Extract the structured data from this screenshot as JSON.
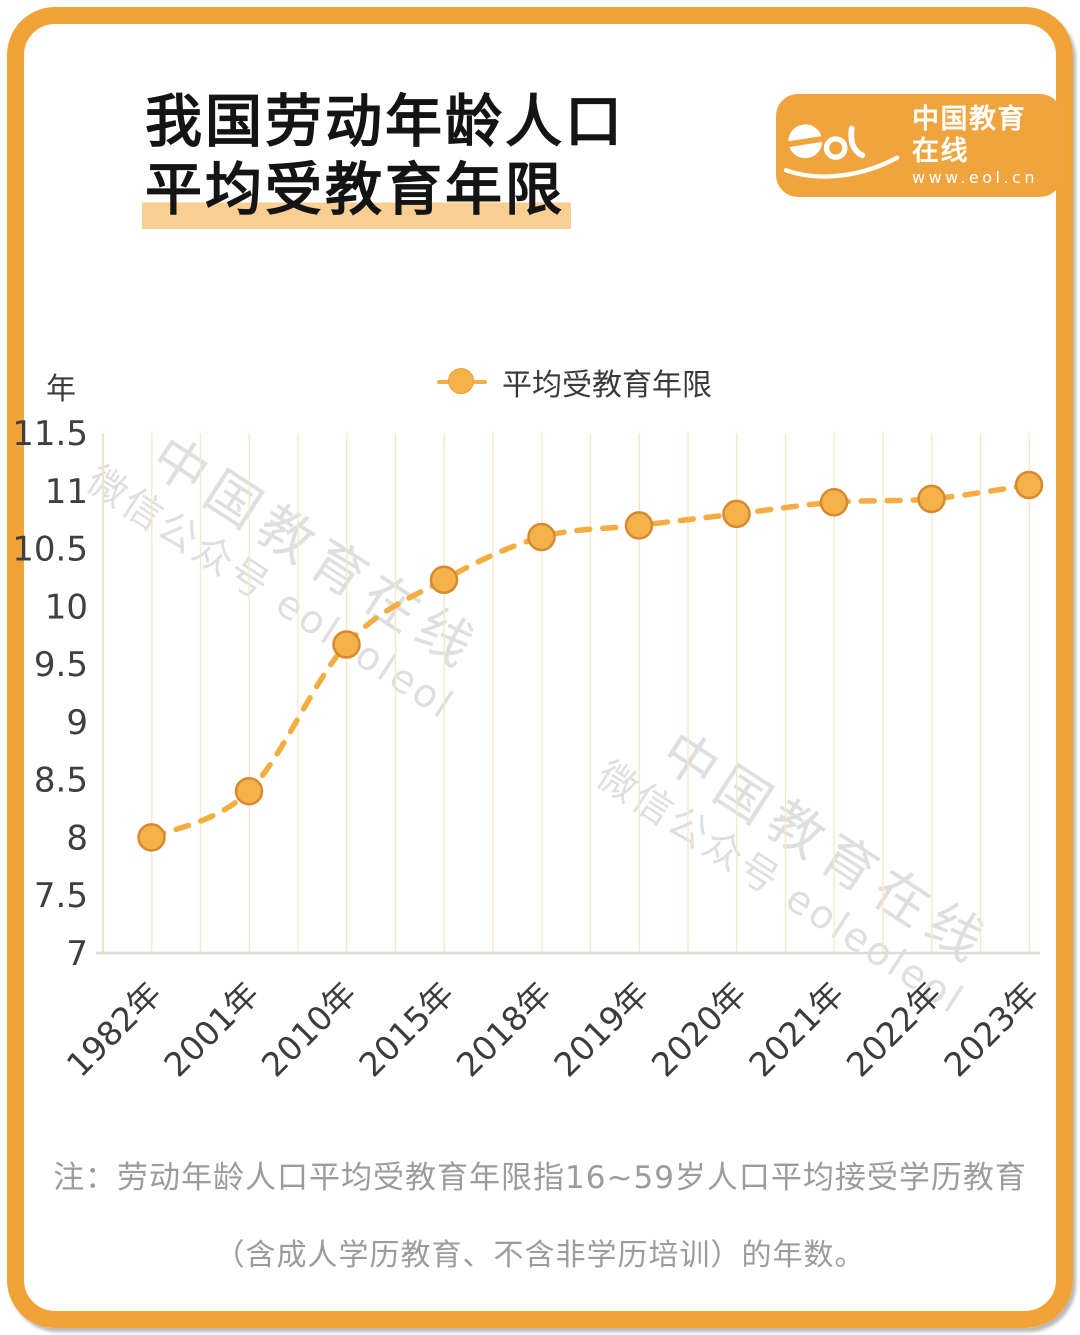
{
  "page": {
    "background": "#FFFFFF",
    "frame_color": "#F2A337"
  },
  "header": {
    "title_line1": "我国劳动年龄人口",
    "title_line2": "平均受教育年限",
    "highlight_color": "#F8CE92"
  },
  "logo": {
    "mark": "eol",
    "site_name": "中国教育在线",
    "site_url": "www.eol.cn",
    "background": "#F0A43E"
  },
  "watermark": {
    "line1": "中国教育在线",
    "line2": "微信公众号 eoleoleol"
  },
  "footnote": {
    "line1": "注：劳动年龄人口平均受教育年限指16~59岁人口平均接受学历教育",
    "line2": "（含成人学历教育、不含非学历培训）的年数。"
  },
  "chart_data": {
    "type": "line",
    "title": "我国劳动年龄人口平均受教育年限",
    "unit_label": "年",
    "xlabel": "",
    "ylabel": "年",
    "categories": [
      "1982年",
      "2001年",
      "2010年",
      "2015年",
      "2018年",
      "2019年",
      "2020年",
      "2021年",
      "2022年",
      "2023年"
    ],
    "series": [
      {
        "name": "平均受教育年限",
        "values": [
          8.0,
          8.4,
          9.67,
          10.23,
          10.6,
          10.7,
          10.8,
          10.9,
          10.93,
          11.05
        ]
      }
    ],
    "ylim": [
      7,
      11.5
    ],
    "ytick_step": 0.5,
    "grid": "vertical-only",
    "line_style": "dashed-smooth",
    "legend": {
      "label": "平均受教育年限",
      "position": "top-center"
    },
    "colors": {
      "line": "#F5AC40",
      "marker_fill": "#F5B24B",
      "marker_stroke": "#D8892E",
      "gridline": "#FAE7CB",
      "axis_line": "#EFE3C8",
      "baseline": "#DCDCD7",
      "tick_text": "#3F3F3F"
    }
  }
}
